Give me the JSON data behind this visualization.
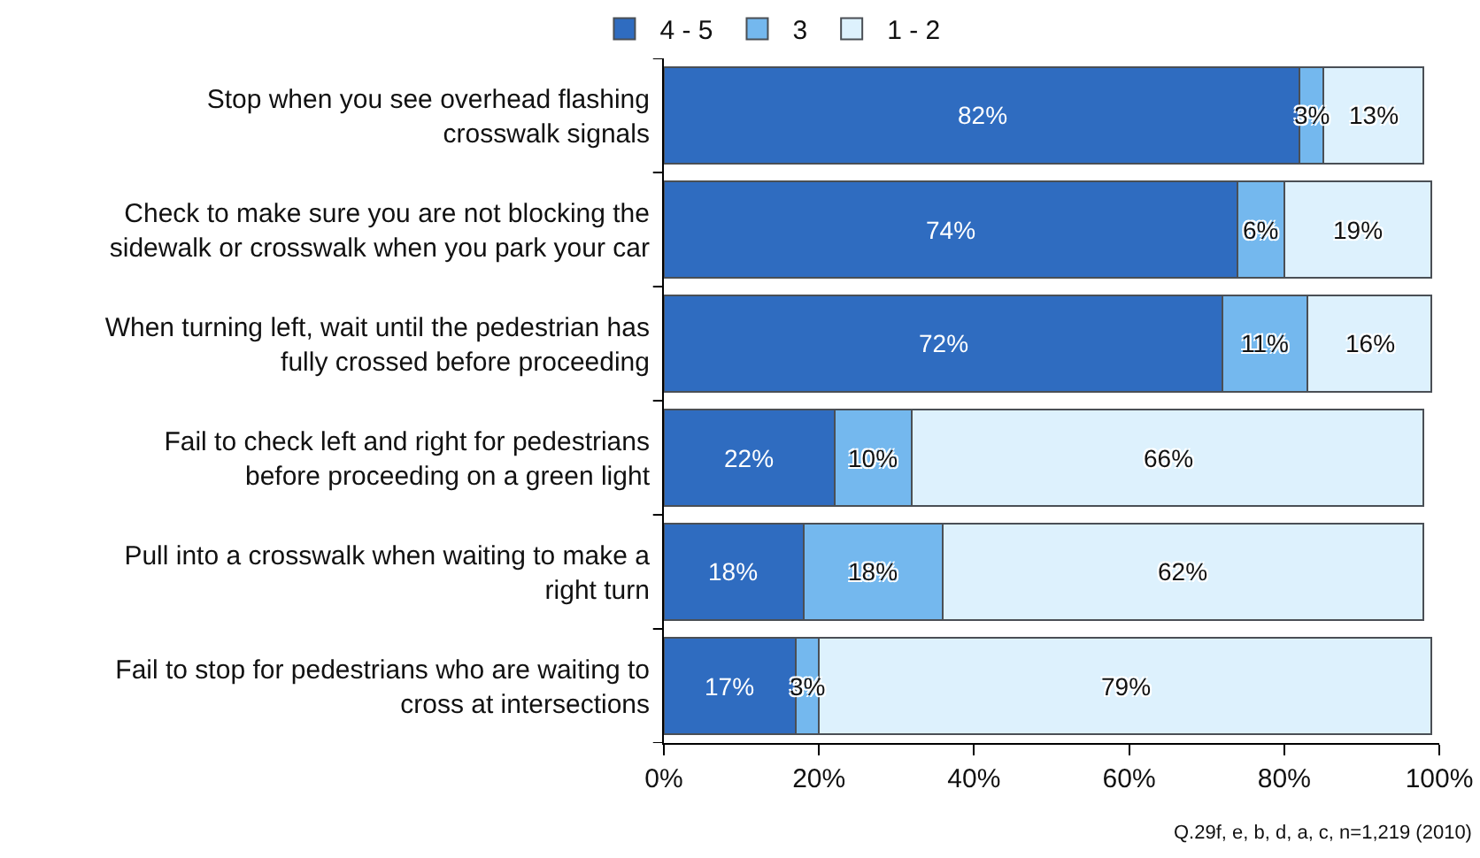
{
  "chart_data": {
    "type": "bar",
    "orientation": "horizontal",
    "stacked": true,
    "categories": [
      "Stop when you see overhead flashing crosswalk signals",
      "Check to make sure you are not blocking the sidewalk or crosswalk when you park your car",
      "When turning left, wait until the pedestrian has fully crossed before proceeding",
      "Fail to check left and right for pedestrians before proceeding on a green light",
      "Pull into a crosswalk when waiting to make a right turn",
      "Fail to stop for pedestrians who are waiting to cross at intersections"
    ],
    "series": [
      {
        "name": "4 - 5",
        "color": "#2f6cc0",
        "values": [
          82,
          74,
          72,
          22,
          18,
          17
        ],
        "value_labels": [
          "82%",
          "74%",
          "72%",
          "22%",
          "18%",
          "17%"
        ]
      },
      {
        "name": "3",
        "color": "#74b8ee",
        "values": [
          3,
          6,
          11,
          10,
          18,
          3
        ],
        "value_labels": [
          "3%",
          "6%",
          "11%",
          "10%",
          "18%",
          "3%"
        ]
      },
      {
        "name": "1 - 2",
        "color": "#ddf1fd",
        "values": [
          13,
          19,
          16,
          66,
          62,
          79
        ],
        "value_labels": [
          "13%",
          "19%",
          "16%",
          "66%",
          "62%",
          "79%"
        ]
      }
    ],
    "xlim": [
      0,
      100
    ],
    "xticks": [
      {
        "value": 0,
        "label": "0%"
      },
      {
        "value": 20,
        "label": "20%"
      },
      {
        "value": 40,
        "label": "40%"
      },
      {
        "value": 60,
        "label": "60%"
      },
      {
        "value": 80,
        "label": "80%"
      },
      {
        "value": 100,
        "label": "100%"
      }
    ],
    "grid": false,
    "legend": "top",
    "annotations": [
      "Q.29f, e, b, d, a, c, n=1,219 (2010)"
    ]
  }
}
